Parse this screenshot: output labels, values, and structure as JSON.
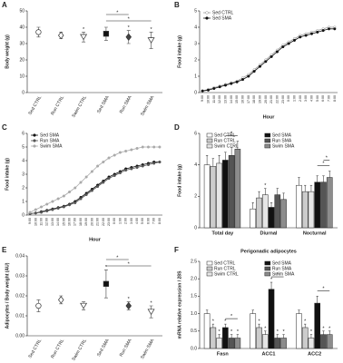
{
  "chart_data": [
    {
      "type": "dot",
      "label": "A",
      "y_label": "Body weight (g)",
      "categories": [
        "Sed CTRL",
        "Run CTRL",
        "Swim CTRL",
        "Sed SMA",
        "Run SMA",
        "Swim SMA"
      ],
      "values": [
        37,
        35,
        34,
        36,
        34,
        32
      ],
      "errors": [
        3,
        2,
        3,
        4,
        4,
        5
      ],
      "markers": [
        "circle",
        "diamond",
        "triangle",
        "square",
        "diamond",
        "triangle"
      ],
      "colors": [
        "#ffffff",
        "#ffffff",
        "#ffffff",
        "#111111",
        "#444444",
        "#ffffff"
      ],
      "stars": [
        null,
        null,
        "*",
        null,
        "*",
        "*"
      ],
      "brackets": [
        {
          "from": 3,
          "to": 4,
          "label": "*"
        },
        {
          "from": 3,
          "to": 5,
          "label": "*"
        }
      ],
      "ylim": [
        0,
        50
      ],
      "yticks": [
        0,
        10,
        20,
        30,
        40,
        50
      ]
    },
    {
      "type": "line",
      "label": "B",
      "y_label": "Food intake (g)",
      "x_label": "Hour",
      "categories": [
        "9:00",
        "10:00",
        "11:00",
        "12:00",
        "13:00",
        "14:00",
        "15:00",
        "16:00",
        "17:00",
        "18:00",
        "19:00",
        "20:00",
        "21:00",
        "22:00",
        "23:00",
        "0:00",
        "1:00",
        "2:00",
        "3:00",
        "4:00",
        "5:00",
        "6:00",
        "7:00",
        "8:00"
      ],
      "series": [
        {
          "name": "Sed CTRL",
          "color": "#999999",
          "marker": "open",
          "values": [
            0.1,
            0.2,
            0.3,
            0.4,
            0.5,
            0.6,
            0.7,
            0.9,
            1.1,
            1.4,
            1.7,
            2.0,
            2.3,
            2.6,
            2.9,
            3.1,
            3.3,
            3.5,
            3.6,
            3.7,
            3.8,
            3.9,
            4.0,
            4.0
          ]
        },
        {
          "name": "Sed SMA",
          "color": "#111111",
          "marker": "filled",
          "values": [
            0.1,
            0.15,
            0.25,
            0.35,
            0.45,
            0.55,
            0.65,
            0.8,
            1.0,
            1.3,
            1.6,
            1.9,
            2.2,
            2.5,
            2.8,
            3.0,
            3.2,
            3.4,
            3.5,
            3.6,
            3.7,
            3.8,
            3.9,
            3.9
          ]
        }
      ],
      "ylim": [
        0,
        5
      ],
      "yticks": [
        0,
        1,
        2,
        3,
        4,
        5
      ]
    },
    {
      "type": "line",
      "label": "C",
      "y_label": "Food intake (g)",
      "x_label": "Hour",
      "categories": [
        "9:00",
        "10:00",
        "11:00",
        "12:00",
        "13:00",
        "14:00",
        "15:00",
        "16:00",
        "17:00",
        "18:00",
        "19:00",
        "20:00",
        "21:00",
        "22:00",
        "23:00",
        "0:00",
        "1:00",
        "2:00",
        "3:00",
        "4:00",
        "5:00",
        "6:00",
        "7:00",
        "8:00"
      ],
      "series": [
        {
          "name": "Sed SMA",
          "color": "#111111",
          "marker": "filled",
          "values": [
            0.1,
            0.15,
            0.25,
            0.35,
            0.45,
            0.55,
            0.65,
            0.8,
            1.0,
            1.3,
            1.6,
            1.9,
            2.2,
            2.5,
            2.8,
            3.0,
            3.2,
            3.4,
            3.5,
            3.6,
            3.7,
            3.8,
            3.9,
            3.9
          ]
        },
        {
          "name": "Run SMA",
          "color": "#555555",
          "marker": "filled",
          "values": [
            0.1,
            0.15,
            0.2,
            0.3,
            0.4,
            0.5,
            0.6,
            0.75,
            0.9,
            1.2,
            1.5,
            1.8,
            2.1,
            2.4,
            2.7,
            2.9,
            3.1,
            3.3,
            3.4,
            3.5,
            3.6,
            3.7,
            3.8,
            3.9
          ]
        },
        {
          "name": "Swim SMA",
          "color": "#aaaaaa",
          "marker": "filled",
          "values": [
            0.2,
            0.4,
            0.6,
            0.8,
            1.0,
            1.2,
            1.4,
            1.7,
            2.0,
            2.4,
            2.8,
            3.2,
            3.6,
            3.9,
            4.2,
            4.4,
            4.6,
            4.7,
            4.8,
            4.9,
            5.0,
            5.0,
            5.0,
            5.0
          ]
        }
      ],
      "ylim": [
        0,
        6
      ],
      "yticks": [
        0,
        1,
        2,
        3,
        4,
        5,
        6
      ]
    },
    {
      "type": "bar",
      "label": "D",
      "y_label": "Food intake (g)",
      "categories": [
        "Total day",
        "Diurnal",
        "Nocturnal"
      ],
      "series": [
        {
          "name": "Sed CTRL",
          "color": "#ffffff",
          "values": [
            4.0,
            1.2,
            2.7
          ],
          "errors": [
            0.6,
            0.4,
            0.5
          ],
          "stars": [
            null,
            null,
            null
          ]
        },
        {
          "name": "Run CTRL",
          "color": "#cccccc",
          "values": [
            3.9,
            1.9,
            2.3
          ],
          "errors": [
            0.5,
            0.4,
            0.4
          ],
          "stars": [
            null,
            null,
            null
          ]
        },
        {
          "name": "Swim CTRL",
          "color": "#e6e6e6",
          "values": [
            4.1,
            2.1,
            2.3
          ],
          "errors": [
            0.5,
            0.4,
            0.4
          ],
          "stars": [
            null,
            "*",
            null
          ]
        },
        {
          "name": "Sed SMA",
          "color": "#111111",
          "values": [
            4.3,
            1.3,
            2.9
          ],
          "errors": [
            0.5,
            0.3,
            0.4
          ],
          "stars": [
            null,
            null,
            null
          ]
        },
        {
          "name": "Run SMA",
          "color": "#555555",
          "values": [
            4.6,
            2.1,
            2.9
          ],
          "errors": [
            0.5,
            0.4,
            0.4
          ],
          "stars": [
            null,
            null,
            null
          ]
        },
        {
          "name": "Swim SMA",
          "color": "#8c8c8c",
          "values": [
            5.0,
            1.8,
            3.2
          ],
          "errors": [
            0.5,
            0.4,
            0.4
          ],
          "stars": [
            null,
            null,
            null
          ]
        }
      ],
      "brackets": [
        {
          "category": 0,
          "from": 3,
          "to": 5,
          "label": "*"
        },
        {
          "category": 2,
          "from": 3,
          "to": 5,
          "label": "*"
        },
        {
          "category": 2,
          "from": 4,
          "to": 5,
          "label": "*"
        }
      ],
      "ylim": [
        0,
        6
      ],
      "yticks": [
        0,
        2,
        4,
        6
      ]
    },
    {
      "type": "dot",
      "label": "E",
      "y_label": "Adipocytes / Body weight (AU)",
      "categories": [
        "Sed CTRL",
        "Run CTRL",
        "Swim CTRL",
        "Sed SMA",
        "Run SMA",
        "Swim SMA"
      ],
      "values": [
        0.015,
        0.018,
        0.015,
        0.026,
        0.015,
        0.012
      ],
      "errors": [
        0.003,
        0.002,
        0.002,
        0.007,
        0.002,
        0.003
      ],
      "markers": [
        "circle",
        "diamond",
        "triangle",
        "square",
        "diamond",
        "triangle"
      ],
      "colors": [
        "#ffffff",
        "#ffffff",
        "#ffffff",
        "#111111",
        "#444444",
        "#ffffff"
      ],
      "stars": [
        null,
        null,
        null,
        "*",
        "*",
        "*"
      ],
      "brackets": [
        {
          "from": 3,
          "to": 4,
          "label": "*"
        },
        {
          "from": 3,
          "to": 5,
          "label": "*"
        }
      ],
      "ylim": [
        0,
        0.04
      ],
      "yticks": [
        {
          "value": 0,
          "label": "0.00"
        },
        0.01,
        0.02,
        0.03,
        0.04
      ]
    },
    {
      "type": "bar",
      "label": "F",
      "title": "Perigonadic adipocytes",
      "y_label": "mRNA relative expression / 28S",
      "categories": [
        "Fasn",
        "ACC1",
        "ACC2"
      ],
      "series": [
        {
          "name": "Sed CTRL",
          "color": "#ffffff",
          "values": [
            1.0,
            1.0,
            1.0
          ],
          "errors": [
            0.1,
            0.1,
            0.1
          ],
          "stars": [
            null,
            null,
            null
          ]
        },
        {
          "name": "Run CTRL",
          "color": "#cccccc",
          "values": [
            0.6,
            0.6,
            0.6
          ],
          "errors": [
            0.1,
            0.1,
            0.1
          ],
          "stars": [
            "*",
            "*",
            "*"
          ]
        },
        {
          "name": "Swim CTRL",
          "color": "#e6e6e6",
          "values": [
            0.3,
            0.4,
            0.3
          ],
          "errors": [
            0.1,
            0.1,
            0.1
          ],
          "stars": [
            "*",
            "*",
            "*"
          ]
        },
        {
          "name": "Sed SMA",
          "color": "#111111",
          "values": [
            0.6,
            1.7,
            1.3
          ],
          "errors": [
            0.1,
            0.2,
            0.2
          ],
          "stars": [
            "*",
            "*",
            null
          ]
        },
        {
          "name": "Run SMA",
          "color": "#555555",
          "values": [
            0.3,
            0.3,
            0.4
          ],
          "errors": [
            0.1,
            0.1,
            0.1
          ],
          "stars": [
            "*",
            "*",
            "*"
          ]
        },
        {
          "name": "Swim SMA",
          "color": "#8c8c8c",
          "values": [
            0.3,
            0.3,
            0.4
          ],
          "errors": [
            0.1,
            0.1,
            0.1
          ],
          "stars": [
            "*",
            "*",
            "*"
          ]
        }
      ],
      "brackets": [
        {
          "category": 0,
          "from": 3,
          "to": 5,
          "label": "*"
        },
        {
          "category": 1,
          "from": 3,
          "to": 5,
          "label": "*"
        },
        {
          "category": 2,
          "from": 3,
          "to": 5,
          "label": "*"
        }
      ],
      "ylim": [
        0,
        2.5
      ],
      "yticks": [
        {
          "value": 0,
          "label": "0.0"
        },
        0.5,
        {
          "value": 1,
          "label": "1.0"
        },
        1.5,
        {
          "value": 2,
          "label": "2.0"
        },
        2.5
      ]
    }
  ]
}
